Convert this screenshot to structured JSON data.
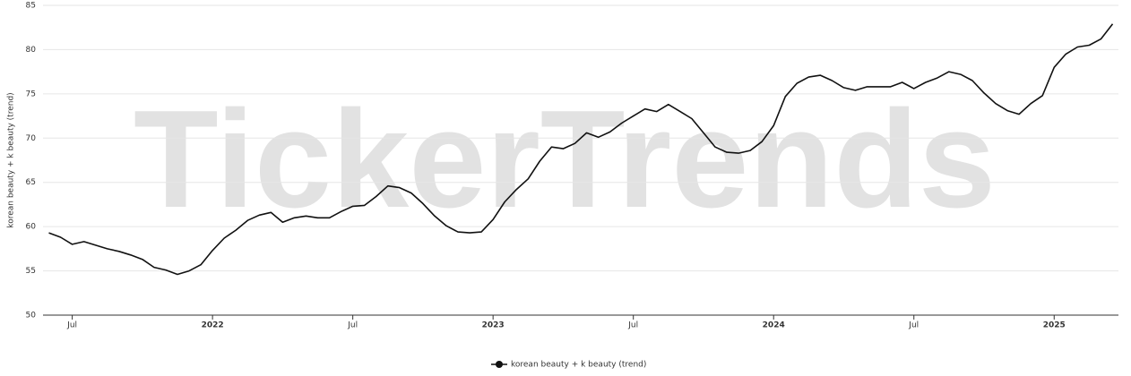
{
  "chart_data": {
    "type": "line",
    "watermark": "TickerTrends",
    "y_label": "korean beauty + k beauty  (trend)",
    "categories": [
      null,
      null,
      "Jul",
      null,
      null,
      null,
      null,
      null,
      null,
      null,
      null,
      null,
      null,
      null,
      "2022",
      null,
      null,
      null,
      null,
      null,
      null,
      null,
      null,
      null,
      null,
      null,
      "Jul",
      null,
      null,
      null,
      null,
      null,
      null,
      null,
      null,
      null,
      null,
      null,
      "2023",
      null,
      null,
      null,
      null,
      null,
      null,
      null,
      null,
      null,
      null,
      null,
      "Jul",
      null,
      null,
      null,
      null,
      null,
      null,
      null,
      null,
      null,
      null,
      null,
      "2024",
      null,
      null,
      null,
      null,
      null,
      null,
      null,
      null,
      null,
      null,
      null,
      "Jul",
      null,
      null,
      null,
      null,
      null,
      null,
      null,
      null,
      null,
      null,
      null,
      "2025",
      null,
      null,
      null,
      null,
      null
    ],
    "series": [
      {
        "name": "korean beauty + k beauty  (trend)",
        "color": "#111111",
        "values": [
          59.3,
          58.8,
          58.0,
          58.3,
          57.9,
          57.5,
          57.2,
          56.8,
          56.3,
          55.4,
          55.1,
          54.6,
          55.0,
          55.7,
          57.3,
          58.7,
          59.6,
          60.7,
          61.3,
          61.6,
          60.5,
          61.0,
          61.2,
          61.0,
          61.0,
          61.7,
          62.3,
          62.4,
          63.4,
          64.6,
          64.4,
          63.8,
          62.6,
          61.2,
          60.1,
          59.4,
          59.3,
          59.4,
          60.8,
          62.8,
          64.2,
          65.4,
          67.4,
          69.0,
          68.8,
          69.4,
          70.6,
          70.1,
          70.7,
          71.7,
          72.5,
          73.3,
          73.0,
          73.8,
          73.0,
          72.2,
          70.6,
          69.0,
          68.4,
          68.3,
          68.6,
          69.6,
          71.4,
          74.7,
          76.2,
          76.9,
          77.1,
          76.5,
          75.7,
          75.4,
          75.8,
          75.8,
          75.8,
          76.3,
          75.6,
          76.3,
          76.8,
          77.5,
          77.2,
          76.5,
          75.1,
          73.9,
          73.1,
          72.7,
          73.9,
          74.8,
          78.0,
          79.5,
          80.3,
          80.5,
          81.2,
          82.9
        ]
      }
    ],
    "ylim": [
      50,
      85
    ],
    "yticks": [
      50,
      55,
      60,
      65,
      70,
      75,
      80,
      85
    ],
    "grid": true
  }
}
